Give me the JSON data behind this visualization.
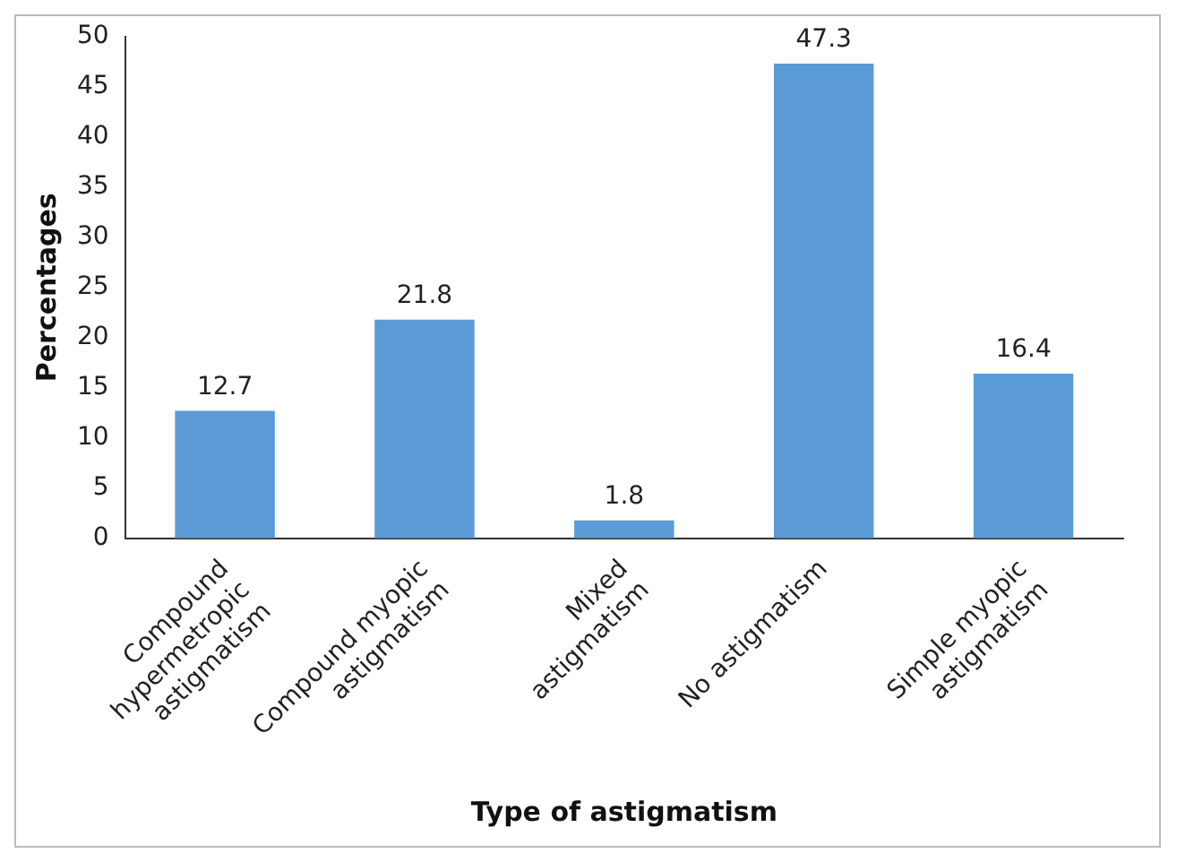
{
  "chart_data": {
    "type": "bar",
    "xlabel": "Type of astigmatism",
    "ylabel": "Percentages",
    "categories": [
      "Compound hypermetropic astigmatism",
      "Compound myopic astigmatism",
      "Mixed astigmatism",
      "No astigmatism",
      "Simple myopic astigmatism"
    ],
    "values": [
      12.7,
      21.8,
      1.8,
      47.3,
      16.4
    ],
    "color": "#5b9bd5",
    "ylim": [
      0,
      50
    ],
    "yticks": [
      0,
      5,
      10,
      15,
      20,
      25,
      30,
      35,
      40,
      45,
      50
    ],
    "grid": false,
    "legend": false,
    "data_labels": true
  }
}
